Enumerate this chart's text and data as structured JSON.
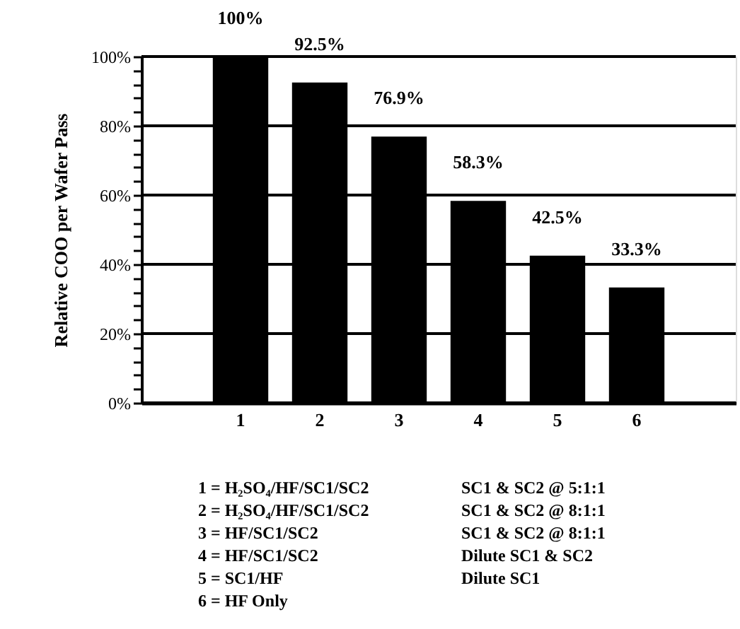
{
  "chart_data": {
    "type": "bar",
    "ylabel": "Relative COO per Wafer Pass",
    "categories": [
      "1",
      "2",
      "3",
      "4",
      "5",
      "6"
    ],
    "values": [
      100,
      92.5,
      76.9,
      58.3,
      42.5,
      33.3
    ],
    "value_labels": [
      "100%",
      "92.5%",
      "76.9%",
      "58.3%",
      "42.5%",
      "33.3%"
    ],
    "color": "#000000",
    "ylim": [
      0,
      100
    ],
    "yticks": [
      {
        "value": 0,
        "label": "0%"
      },
      {
        "value": 4,
        "label": null
      },
      {
        "value": 8,
        "label": null
      },
      {
        "value": 12,
        "label": null
      },
      {
        "value": 16,
        "label": null
      },
      {
        "value": 20,
        "label": "20%"
      },
      {
        "value": 24,
        "label": null
      },
      {
        "value": 28,
        "label": null
      },
      {
        "value": 32,
        "label": null
      },
      {
        "value": 36,
        "label": null
      },
      {
        "value": 40,
        "label": "40%"
      },
      {
        "value": 44,
        "label": null
      },
      {
        "value": 48,
        "label": null
      },
      {
        "value": 52,
        "label": null
      },
      {
        "value": 56,
        "label": null
      },
      {
        "value": 60,
        "label": "60%"
      },
      {
        "value": 64,
        "label": null
      },
      {
        "value": 68,
        "label": null
      },
      {
        "value": 72,
        "label": null
      },
      {
        "value": 76,
        "label": null
      },
      {
        "value": 80,
        "label": "80%"
      },
      {
        "value": 84,
        "label": null
      },
      {
        "value": 88,
        "label": null
      },
      {
        "value": 92,
        "label": null
      },
      {
        "value": 96,
        "label": null
      },
      {
        "value": 100,
        "label": "100%"
      }
    ],
    "grid": "y",
    "annotations": [
      "1 = H₂SO₄/HF/SC1/SC2",
      "2 = H₂SO₄/HF/SC1/SC2",
      "3 = HF/SC1/SC2",
      "4 = HF/SC1/SC2",
      "5 = SC1/HF",
      "6 = HF Only",
      "SC1 & SC2 @ 5:1:1",
      "SC1 & SC2 @ 8:1:1",
      "SC1 & SC2 @ 8:1:1",
      "Dilute SC1 & SC2",
      "Dilute SC1"
    ]
  }
}
